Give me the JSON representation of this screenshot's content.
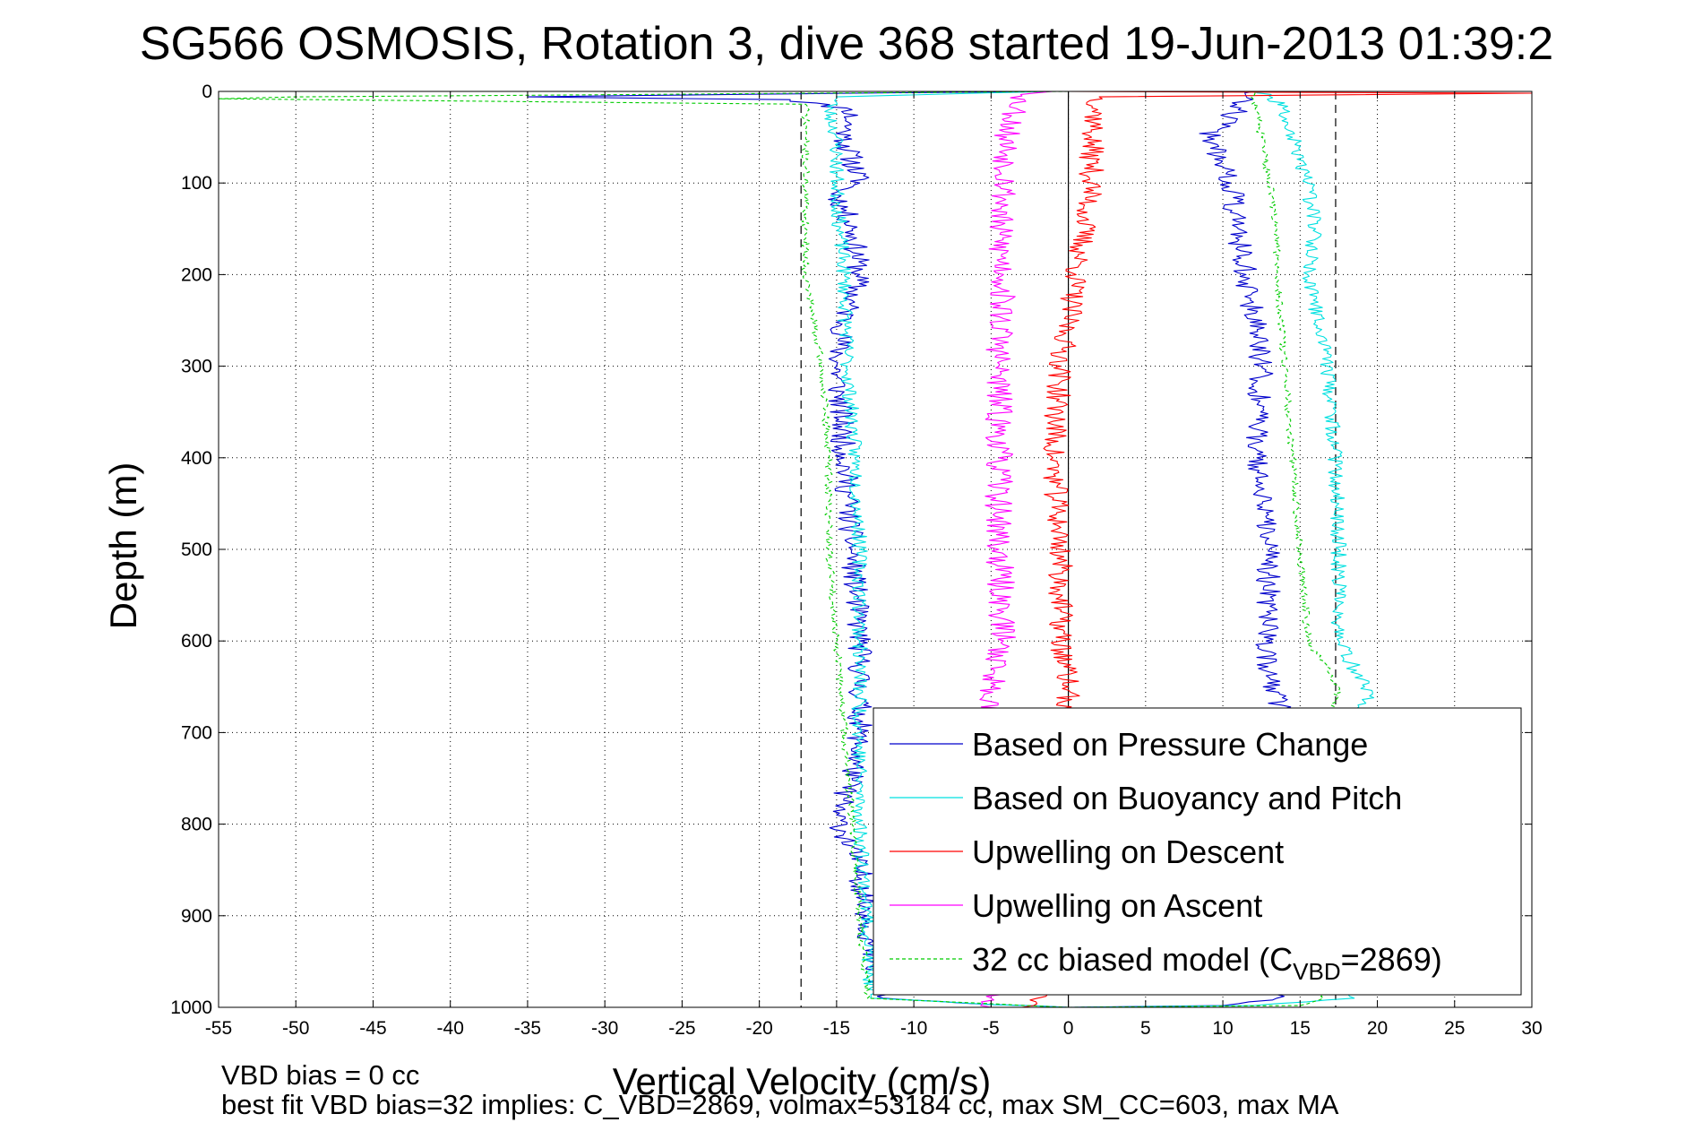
{
  "figure": {
    "title": "SG566 OSMOSIS, Rotation 3, dive 368 started 19-Jun-2013 01:39:2",
    "footer_line1": "VBD bias = 0 cc",
    "footer_line2": "best fit VBD bias=32 implies: C_VBD=2869, volmax=53184 cc, max SM_CC=603, max MA"
  },
  "chart_data": {
    "type": "line",
    "title": "SG566 OSMOSIS, Rotation 3, dive 368 started 19-Jun-2013 01:39:2",
    "xlabel": "Vertical Velocity (cm/s)",
    "ylabel": "Depth (m)",
    "xlim": [
      -55,
      30
    ],
    "ylim": [
      0,
      1000
    ],
    "y_reversed": true,
    "grid": true,
    "legend_position": "bottom-right",
    "x_ticks": [
      "-55",
      "-50",
      "-45",
      "-40",
      "-35",
      "-30",
      "-25",
      "-20",
      "-15",
      "-10",
      "-5",
      "0",
      "5",
      "10",
      "15",
      "20",
      "25",
      "30"
    ],
    "y_ticks": [
      "0",
      "100",
      "200",
      "300",
      "400",
      "500",
      "600",
      "700",
      "800",
      "900",
      "1000"
    ],
    "reference_lines": [
      {
        "x": -17.3,
        "style": "dashed",
        "color": "#000000"
      },
      {
        "x": 0,
        "style": "solid",
        "color": "#000000"
      },
      {
        "x": 17.3,
        "style": "dashed",
        "color": "#000000"
      }
    ],
    "legend": [
      {
        "label": "Based on Pressure Change",
        "color": "#0000cc",
        "style": "solid"
      },
      {
        "label": "Based on Buoyancy and Pitch",
        "color": "#00e0e0",
        "style": "solid"
      },
      {
        "label": "Upwelling on Descent",
        "color": "#ff0000",
        "style": "solid"
      },
      {
        "label": "Upwelling on Ascent",
        "color": "#ff00ff",
        "style": "solid"
      },
      {
        "label": "32 cc biased model (C",
        "sub": "VBD",
        "after": "=2869)",
        "color": "#00cc00",
        "style": "dashed"
      }
    ],
    "series": [
      {
        "name": "Based on Pressure Change",
        "color": "#0000cc",
        "style": "solid",
        "noise": 0.8,
        "seed": 11,
        "segments": [
          [
            [
              -1,
              0
            ],
            [
              -20,
              3
            ],
            [
              -35,
              6
            ],
            [
              -18,
              9
            ],
            [
              -14,
              20
            ],
            [
              -14.5,
              50
            ],
            [
              -13.5,
              100
            ],
            [
              -15,
              110
            ],
            [
              -14,
              150
            ],
            [
              -13.5,
              200
            ],
            [
              -14.5,
              250
            ],
            [
              -15,
              300
            ],
            [
              -14.5,
              400
            ],
            [
              -14,
              500
            ],
            [
              -13.5,
              600
            ],
            [
              -13.5,
              700
            ],
            [
              -14,
              750
            ],
            [
              -15,
              790
            ],
            [
              -13.5,
              850
            ],
            [
              -13,
              900
            ],
            [
              -12.8,
              950
            ],
            [
              -12,
              990
            ],
            [
              -5,
              997
            ],
            [
              0,
              1000
            ]
          ],
          [
            [
              0,
              1000
            ],
            [
              10,
              998
            ],
            [
              13.5,
              990
            ],
            [
              13,
              940
            ],
            [
              13,
              900
            ],
            [
              13.2,
              850
            ],
            [
              13.5,
              800
            ],
            [
              13.8,
              750
            ],
            [
              14.2,
              700
            ],
            [
              13,
              640
            ],
            [
              12.8,
              600
            ],
            [
              13,
              500
            ],
            [
              12.2,
              400
            ],
            [
              12.5,
              300
            ],
            [
              11.5,
              200
            ],
            [
              11,
              150
            ],
            [
              10.5,
              100
            ],
            [
              9,
              50
            ],
            [
              11,
              20
            ],
            [
              11.5,
              5
            ],
            [
              12,
              0
            ]
          ]
        ]
      },
      {
        "name": "Based on Buoyancy and Pitch",
        "color": "#00e0e0",
        "style": "solid",
        "noise": 0.5,
        "seed": 23,
        "segments": [
          [
            [
              -1,
              0
            ],
            [
              -15,
              6
            ],
            [
              -15.5,
              20
            ],
            [
              -15,
              50
            ],
            [
              -15,
              100
            ],
            [
              -14.8,
              150
            ],
            [
              -14.5,
              200
            ],
            [
              -14.3,
              300
            ],
            [
              -13.8,
              400
            ],
            [
              -13.5,
              500
            ],
            [
              -13.5,
              600
            ],
            [
              -13.5,
              700
            ],
            [
              -13.5,
              800
            ],
            [
              -13,
              900
            ],
            [
              -12.8,
              990
            ],
            [
              -5,
              997
            ],
            [
              0,
              1000
            ]
          ],
          [
            [
              0,
              1000
            ],
            [
              12,
              998
            ],
            [
              18.5,
              990
            ],
            [
              18.5,
              900
            ],
            [
              18.5,
              800
            ],
            [
              18.5,
              680
            ],
            [
              19.5,
              660
            ],
            [
              17.5,
              600
            ],
            [
              17.5,
              500
            ],
            [
              17.3,
              400
            ],
            [
              16.8,
              300
            ],
            [
              15.5,
              200
            ],
            [
              16,
              150
            ],
            [
              15.5,
              100
            ],
            [
              14.5,
              50
            ],
            [
              14,
              20
            ],
            [
              13,
              5
            ],
            [
              12,
              0
            ]
          ]
        ]
      },
      {
        "name": "Upwelling on Descent",
        "color": "#ff0000",
        "style": "solid",
        "noise": 0.8,
        "seed": 37,
        "segments": [
          [
            [
              0,
              0
            ],
            [
              30,
              2
            ],
            [
              2,
              6
            ],
            [
              1.5,
              50
            ],
            [
              1.5,
              100
            ],
            [
              0.5,
              200
            ],
            [
              -0.5,
              300
            ],
            [
              -1,
              400
            ],
            [
              -0.5,
              500
            ],
            [
              -0.5,
              600
            ],
            [
              0,
              650
            ],
            [
              -2,
              990
            ],
            [
              -3,
              1000
            ]
          ]
        ]
      },
      {
        "name": "Upwelling on Ascent",
        "color": "#ff00ff",
        "style": "solid",
        "noise": 0.9,
        "seed": 53,
        "segments": [
          [
            [
              -1,
              0
            ],
            [
              -3,
              5
            ],
            [
              -4,
              50
            ],
            [
              -4,
              100
            ],
            [
              -4.5,
              150
            ],
            [
              -4.2,
              200
            ],
            [
              -4.5,
              300
            ],
            [
              -4.5,
              400
            ],
            [
              -4.5,
              500
            ],
            [
              -4.2,
              600
            ],
            [
              -5,
              650
            ],
            [
              -4.5,
              700
            ],
            [
              -5,
              990
            ],
            [
              -5,
              1000
            ]
          ]
        ]
      },
      {
        "name": "32 cc biased model (CVBD=2869)",
        "color": "#00cc00",
        "style": "dashed",
        "noise": 0.25,
        "seed": 71,
        "segments": [
          [
            [
              0,
              0
            ],
            [
              -50,
              6
            ],
            [
              -55,
              8
            ],
            [
              -17,
              14
            ],
            [
              -17,
              50
            ],
            [
              -17,
              100
            ],
            [
              -17,
              150
            ],
            [
              -17,
              200
            ],
            [
              -16,
              300
            ],
            [
              -15.5,
              400
            ],
            [
              -15.5,
              500
            ],
            [
              -15,
              600
            ],
            [
              -14.5,
              700
            ],
            [
              -14,
              800
            ],
            [
              -13.5,
              900
            ],
            [
              -13,
              990
            ],
            [
              0,
              1000
            ]
          ],
          [
            [
              0,
              1000
            ],
            [
              15,
              998
            ],
            [
              16.5,
              990
            ],
            [
              16.5,
              900
            ],
            [
              17,
              800
            ],
            [
              16.5,
              700
            ],
            [
              17.5,
              650
            ],
            [
              15.5,
              600
            ],
            [
              15,
              500
            ],
            [
              14.5,
              400
            ],
            [
              14,
              300
            ],
            [
              13.5,
              200
            ],
            [
              13.5,
              150
            ],
            [
              13,
              100
            ],
            [
              12.5,
              50
            ],
            [
              12,
              10
            ],
            [
              12,
              0
            ]
          ]
        ]
      }
    ]
  }
}
